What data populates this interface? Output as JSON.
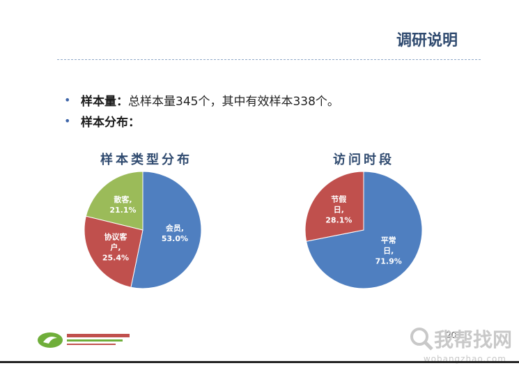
{
  "slide": {
    "title": "调研说明",
    "bullets": [
      {
        "label": "样本量：",
        "text": "总样本量345个，其中有效样本338个。"
      },
      {
        "label": "样本分布：",
        "text": ""
      }
    ],
    "page_number": "20"
  },
  "chart_data": [
    {
      "type": "pie",
      "title": "样本类型分布",
      "slices": [
        {
          "label": "会员,",
          "percent": "53.0%",
          "value": 53.0,
          "color": "#4f7fc0"
        },
        {
          "label": "协议客户,",
          "percent": "25.4%",
          "value": 25.4,
          "color": "#c0504d"
        },
        {
          "label": "散客,",
          "percent": "21.1%",
          "value": 21.1,
          "color": "#9bbb59"
        }
      ]
    },
    {
      "type": "pie",
      "title": "访问时段",
      "slices": [
        {
          "label": "平常日,",
          "percent": "71.9%",
          "value": 71.9,
          "color": "#4f7fc0"
        },
        {
          "label": "节假日,",
          "percent": "28.1%",
          "value": 28.1,
          "color": "#c0504d"
        }
      ]
    }
  ],
  "watermark": {
    "text": "我帮找网",
    "url_text": "wobangzhao.com"
  }
}
